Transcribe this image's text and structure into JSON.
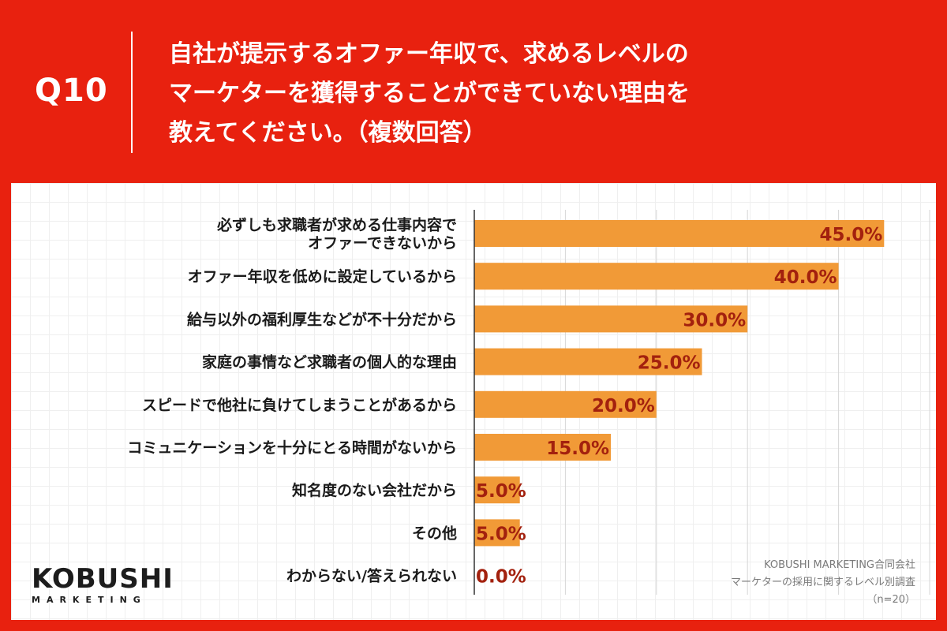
{
  "header": {
    "question_number": "Q10",
    "title_lines": [
      "自社が提示するオファー年収で、求めるレベルの",
      "マーケターを獲得することができていない理由を",
      "教えてください。（複数回答）"
    ]
  },
  "chart_data": {
    "type": "bar",
    "orientation": "horizontal",
    "categories": [
      [
        "必ずしも求職者が求める仕事内容で",
        "オファーできないから"
      ],
      [
        "オファー年収を低めに設定しているから"
      ],
      [
        "給与以外の福利厚生などが不十分だから"
      ],
      [
        "家庭の事情など求職者の個人的な理由"
      ],
      [
        "スピードで他社に負けてしまうことがあるから"
      ],
      [
        "コミュニケーションを十分にとる時間がないから"
      ],
      [
        "知名度のない会社だから"
      ],
      [
        "その他"
      ],
      [
        "わからない/答えられない"
      ]
    ],
    "values": [
      45.0,
      40.0,
      30.0,
      25.0,
      20.0,
      15.0,
      5.0,
      5.0,
      0.0
    ],
    "value_labels": [
      "45.0%",
      "40.0%",
      "30.0%",
      "25.0%",
      "20.0%",
      "15.0%",
      "5.0%",
      "5.0%",
      "0.0%"
    ],
    "xlim": [
      0,
      50
    ],
    "gridlines": [
      0,
      10,
      20,
      30,
      40,
      50
    ],
    "grid": true,
    "bar_color": "#f19a37",
    "value_label_color": "#a3210e",
    "gridline_color": "#d6d6d6"
  },
  "logo": {
    "main": "KOBUSHI",
    "sub": "MARKETING"
  },
  "source": {
    "lines": [
      "KOBUSHI MARKETING合同会社",
      "マーケターの採用に関するレベル別調査",
      "（n=20）"
    ]
  },
  "colors": {
    "background": "#e8210f",
    "panel": "#ffffff",
    "title_text": "#ffffff"
  }
}
